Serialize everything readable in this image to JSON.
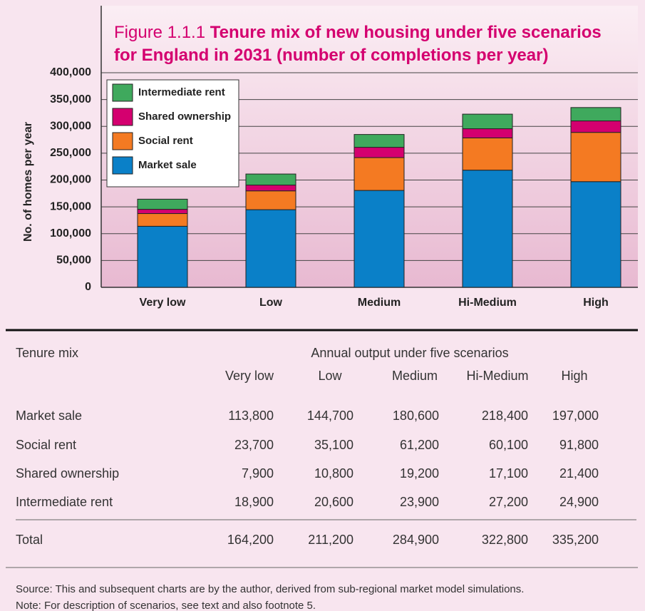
{
  "chart_data": {
    "type": "stacked_bar",
    "figure_label": "Figure 1.1.1",
    "title": "Tenure mix of new housing under five scenarios for England in 2031 (number of completions per year)",
    "ylabel": "No. of homes per year",
    "categories": [
      "Very low",
      "Low",
      "Medium",
      "Hi-Medium",
      "High"
    ],
    "series": [
      {
        "name": "Market sale",
        "color": "#0a80c8",
        "values": [
          113800,
          144700,
          180600,
          218400,
          197000
        ]
      },
      {
        "name": "Social rent",
        "color": "#f47a22",
        "values": [
          23700,
          35100,
          61200,
          60100,
          91800
        ]
      },
      {
        "name": "Shared ownership",
        "color": "#d4006f",
        "values": [
          7900,
          10800,
          19200,
          17100,
          21400
        ]
      },
      {
        "name": "Intermediate rent",
        "color": "#3fa95d",
        "values": [
          18900,
          20600,
          23900,
          27200,
          24900
        ]
      }
    ],
    "ylim": [
      0,
      400000
    ],
    "yticks": [
      0,
      {
        "value": 50000,
        "label": "50,000"
      },
      {
        "value": 100000,
        "label": "100,000"
      },
      {
        "value": 150000,
        "label": "150,000"
      },
      {
        "value": 200000,
        "label": "200,000"
      },
      {
        "value": 250000,
        "label": "250,000"
      },
      {
        "value": 300000,
        "label": "300,000"
      },
      {
        "value": 350000,
        "label": "350,000"
      },
      {
        "value": 400000,
        "label": "400,000"
      }
    ],
    "grid": true,
    "legend": "upper left"
  },
  "table": {
    "header": "Tenure mix",
    "group_header": "Annual output under five scenarios",
    "columns": [
      "Very low",
      "Low",
      "Medium",
      "Hi-Medium",
      "High"
    ],
    "rows": [
      [
        "Market sale",
        "113,800",
        "144,700",
        "180,600",
        "218,400",
        "197,000"
      ],
      [
        "Social rent",
        "23,700",
        "35,100",
        "61,200",
        "60,100",
        "91,800"
      ],
      [
        "Shared ownership",
        "7,900",
        "10,800",
        "19,200",
        "17,100",
        "21,400"
      ],
      [
        "Intermediate rent",
        "18,900",
        "20,600",
        "23,900",
        "27,200",
        "24,900"
      ]
    ],
    "total": [
      "Total",
      "164,200",
      "211,200",
      "284,900",
      "322,800",
      "335,200"
    ]
  },
  "source": "Source: This and subsequent charts are by the author, derived from sub-regional market model simulations.",
  "note": "Note: For description of scenarios, see text and also footnote 5."
}
